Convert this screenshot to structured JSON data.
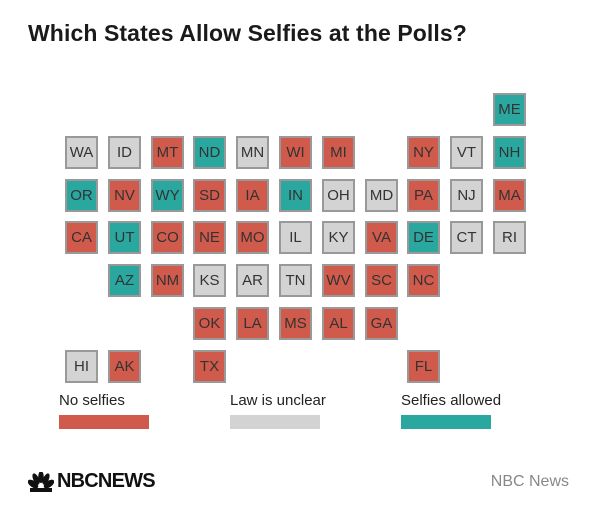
{
  "title": "Which States Allow Selfies at the Polls?",
  "colors": {
    "no_selfies": "#d05a4b",
    "unclear": "#d3d3d3",
    "allowed": "#2aa8a0"
  },
  "legend": {
    "no_selfies": "No selfies",
    "unclear": "Law is unclear",
    "allowed": "Selfies allowed"
  },
  "states": [
    {
      "abbr": "ME",
      "status": "allowed",
      "row": 0,
      "col": 10
    },
    {
      "abbr": "WA",
      "status": "unclear",
      "row": 1,
      "col": 0
    },
    {
      "abbr": "ID",
      "status": "unclear",
      "row": 1,
      "col": 1
    },
    {
      "abbr": "MT",
      "status": "no_selfies",
      "row": 1,
      "col": 2
    },
    {
      "abbr": "ND",
      "status": "allowed",
      "row": 1,
      "col": 3
    },
    {
      "abbr": "MN",
      "status": "unclear",
      "row": 1,
      "col": 4
    },
    {
      "abbr": "WI",
      "status": "no_selfies",
      "row": 1,
      "col": 5
    },
    {
      "abbr": "MI",
      "status": "no_selfies",
      "row": 1,
      "col": 6
    },
    {
      "abbr": "NY",
      "status": "no_selfies",
      "row": 1,
      "col": 8
    },
    {
      "abbr": "VT",
      "status": "unclear",
      "row": 1,
      "col": 9
    },
    {
      "abbr": "NH",
      "status": "allowed",
      "row": 1,
      "col": 10
    },
    {
      "abbr": "OR",
      "status": "allowed",
      "row": 2,
      "col": 0
    },
    {
      "abbr": "NV",
      "status": "no_selfies",
      "row": 2,
      "col": 1
    },
    {
      "abbr": "WY",
      "status": "allowed",
      "row": 2,
      "col": 2
    },
    {
      "abbr": "SD",
      "status": "no_selfies",
      "row": 2,
      "col": 3
    },
    {
      "abbr": "IA",
      "status": "no_selfies",
      "row": 2,
      "col": 4
    },
    {
      "abbr": "IN",
      "status": "allowed",
      "row": 2,
      "col": 5
    },
    {
      "abbr": "OH",
      "status": "unclear",
      "row": 2,
      "col": 6
    },
    {
      "abbr": "MD",
      "status": "unclear",
      "row": 2,
      "col": 7
    },
    {
      "abbr": "PA",
      "status": "no_selfies",
      "row": 2,
      "col": 8
    },
    {
      "abbr": "NJ",
      "status": "unclear",
      "row": 2,
      "col": 9
    },
    {
      "abbr": "MA",
      "status": "no_selfies",
      "row": 2,
      "col": 10
    },
    {
      "abbr": "CA",
      "status": "no_selfies",
      "row": 3,
      "col": 0
    },
    {
      "abbr": "UT",
      "status": "allowed",
      "row": 3,
      "col": 1
    },
    {
      "abbr": "CO",
      "status": "no_selfies",
      "row": 3,
      "col": 2
    },
    {
      "abbr": "NE",
      "status": "no_selfies",
      "row": 3,
      "col": 3
    },
    {
      "abbr": "MO",
      "status": "no_selfies",
      "row": 3,
      "col": 4
    },
    {
      "abbr": "IL",
      "status": "unclear",
      "row": 3,
      "col": 5
    },
    {
      "abbr": "KY",
      "status": "unclear",
      "row": 3,
      "col": 6
    },
    {
      "abbr": "VA",
      "status": "no_selfies",
      "row": 3,
      "col": 7
    },
    {
      "abbr": "DE",
      "status": "allowed",
      "row": 3,
      "col": 8
    },
    {
      "abbr": "CT",
      "status": "unclear",
      "row": 3,
      "col": 9
    },
    {
      "abbr": "RI",
      "status": "unclear",
      "row": 3,
      "col": 10
    },
    {
      "abbr": "AZ",
      "status": "allowed",
      "row": 4,
      "col": 1
    },
    {
      "abbr": "NM",
      "status": "no_selfies",
      "row": 4,
      "col": 2
    },
    {
      "abbr": "KS",
      "status": "unclear",
      "row": 4,
      "col": 3
    },
    {
      "abbr": "AR",
      "status": "unclear",
      "row": 4,
      "col": 4
    },
    {
      "abbr": "TN",
      "status": "unclear",
      "row": 4,
      "col": 5
    },
    {
      "abbr": "WV",
      "status": "no_selfies",
      "row": 4,
      "col": 6
    },
    {
      "abbr": "SC",
      "status": "no_selfies",
      "row": 4,
      "col": 7
    },
    {
      "abbr": "NC",
      "status": "no_selfies",
      "row": 4,
      "col": 8
    },
    {
      "abbr": "OK",
      "status": "no_selfies",
      "row": 5,
      "col": 3
    },
    {
      "abbr": "LA",
      "status": "no_selfies",
      "row": 5,
      "col": 4
    },
    {
      "abbr": "MS",
      "status": "no_selfies",
      "row": 5,
      "col": 5
    },
    {
      "abbr": "AL",
      "status": "no_selfies",
      "row": 5,
      "col": 6
    },
    {
      "abbr": "GA",
      "status": "no_selfies",
      "row": 5,
      "col": 7
    },
    {
      "abbr": "HI",
      "status": "unclear",
      "row": 6,
      "col": 0
    },
    {
      "abbr": "AK",
      "status": "no_selfies",
      "row": 6,
      "col": 1
    },
    {
      "abbr": "TX",
      "status": "no_selfies",
      "row": 6,
      "col": 3
    },
    {
      "abbr": "FL",
      "status": "no_selfies",
      "row": 6,
      "col": 8
    }
  ],
  "logo_text": "NBCNEWS",
  "logo_icon": "peacock-icon",
  "source": "NBC News"
}
